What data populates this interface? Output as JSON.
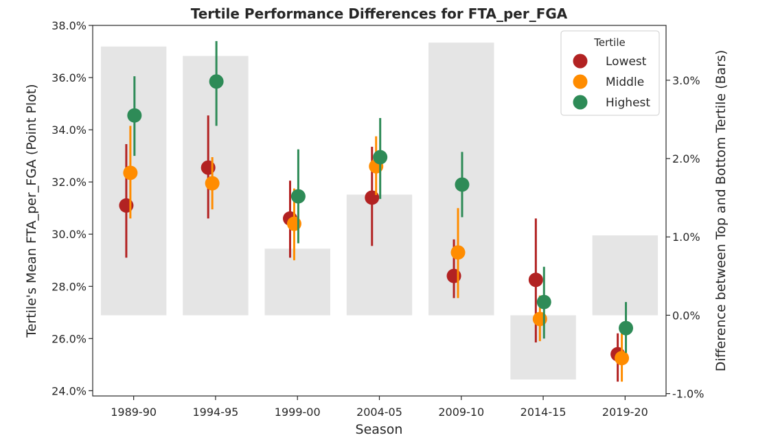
{
  "chart_data": {
    "type": "scatter",
    "title": "Tertile Performance Differences for FTA_per_FGA",
    "xlabel": "Season",
    "ylabel_left": "Tertile's Mean FTA_per_FGA (Point Plot)",
    "ylabel_right": "Difference between Top and Bottom Tertile (Bars)",
    "categories": [
      "1989-90",
      "1994-95",
      "1999-00",
      "2004-05",
      "2009-10",
      "2014-15",
      "2019-20"
    ],
    "ylim_left": [
      23.8,
      38.0
    ],
    "ylim_right": [
      -1.03,
      3.7
    ],
    "yticks_left": [
      "24.0%",
      "26.0%",
      "28.0%",
      "30.0%",
      "32.0%",
      "34.0%",
      "36.0%",
      "38.0%"
    ],
    "yticks_left_values": [
      24,
      26,
      28,
      30,
      32,
      34,
      36,
      38
    ],
    "yticks_right": [
      "-1.0%",
      "0.0%",
      "1.0%",
      "2.0%",
      "3.0%"
    ],
    "yticks_right_values": [
      -1,
      0,
      1,
      2,
      3
    ],
    "bar_color": "#e5e5e5",
    "bars": [
      3.43,
      3.31,
      0.85,
      1.54,
      3.48,
      -0.82,
      1.02
    ],
    "legend_title": "Tertile",
    "legend_position": "top-right",
    "series": [
      {
        "name": "Lowest",
        "color": "#b22222",
        "values": [
          31.1,
          32.55,
          30.6,
          31.4,
          28.4,
          28.25,
          25.4
        ],
        "ci_low": [
          29.1,
          30.6,
          29.1,
          29.55,
          27.55,
          25.85,
          24.35
        ],
        "ci_high": [
          33.45,
          34.55,
          32.05,
          33.35,
          29.8,
          30.6,
          26.2
        ]
      },
      {
        "name": "Middle",
        "color": "#ff8c00",
        "values": [
          32.35,
          31.95,
          30.4,
          32.6,
          29.3,
          26.75,
          25.25
        ],
        "ci_low": [
          30.6,
          30.95,
          29.0,
          31.5,
          27.55,
          25.9,
          24.35
        ],
        "ci_high": [
          34.15,
          32.95,
          31.75,
          33.75,
          31.0,
          27.65,
          26.2
        ]
      },
      {
        "name": "Highest",
        "color": "#2e8b57",
        "values": [
          34.55,
          35.85,
          31.45,
          32.95,
          31.9,
          27.4,
          26.4
        ],
        "ci_low": [
          33.0,
          34.15,
          29.65,
          31.35,
          30.65,
          26.0,
          25.45
        ],
        "ci_high": [
          36.05,
          37.4,
          33.25,
          34.45,
          33.15,
          28.75,
          27.4
        ]
      }
    ]
  }
}
